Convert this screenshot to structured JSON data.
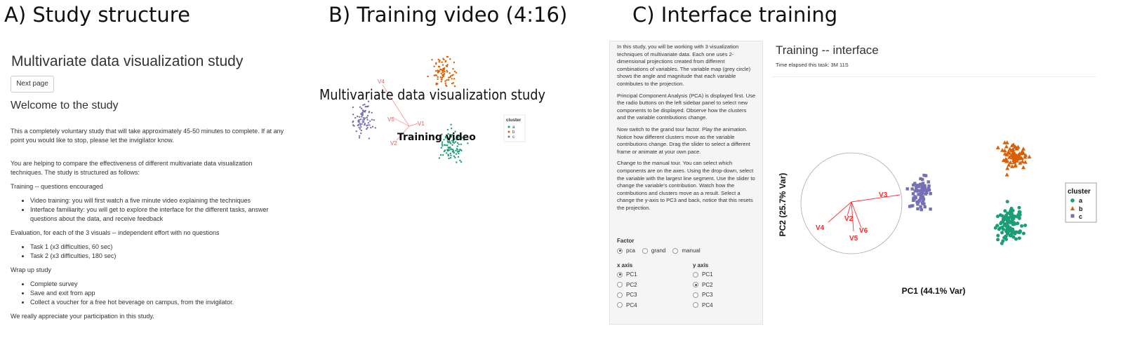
{
  "panels": {
    "a_title": "A) Study structure",
    "b_title": "B) Training video (4:16)",
    "c_title": "C) Interface training"
  },
  "study": {
    "app_title": "Multivariate data visualization study",
    "next_button": "Next page",
    "welcome": "Welcome to the study",
    "intro": "This a completely voluntary study that will take approximately 45-50 minutes to complete. If at any point you would like to stop, please let the invigilator know.",
    "purpose": "You are helping to compare the effectiveness of different multivariate data visualization techniques. The study is structured as follows:",
    "training_heading": "Training -- questions encouraged",
    "training_items": [
      "Video training: you will first watch a five minute video explaining the techniques",
      "Interface familiarity: you will get to explore the interface for the different tasks, answer questions about the data, and receive feedback"
    ],
    "evaluation_heading": "Evaluation, for each of the 3 visuals -- independent effort with no questions",
    "evaluation_items": [
      "Task 1 (x3 difficulties, 60 sec)",
      "Task 2 (x3 difficulties, 180 sec)"
    ],
    "wrapup_heading": "Wrap up study",
    "wrapup_items": [
      "Complete survey",
      "Save and exit from app",
      "Collect a voucher for a free hot beverage on campus, from the invigilator."
    ],
    "closing": "We really appreciate your participation in this study."
  },
  "video": {
    "overlay_title": "Multivariate data visualization study",
    "overlay_subtitle": "Training video",
    "var_labels": [
      "V4",
      "V5",
      "V1",
      "V2"
    ],
    "legend_title": "cluster",
    "legend_items": [
      "a",
      "b",
      "c"
    ]
  },
  "interface": {
    "instructions": [
      "In this study, you will be working with 3 visualization techniques of multivariate data. Each one uses 2-dimensional projections created from different combinations of variables. The variable map (grey circle) shows the angle and magnitude that each variable contributes to the projection.",
      "Principal Component Analysis (PCA) is displayed first. Use the radio buttons on the left sidebar panel to select new components to be displayed. Observe how the clusters and the variable contributions change.",
      "Now switch to the grand tour factor. Play the animation. Notice how different clusters move as the variable contributions change. Drag the slider to select a different frame or animate at your own pace.",
      "Change to the manual tour. You can select which components are on the axes. Using the drop-down, select the variable with the largest line segment. Use the slider to change the variable's contribution. Watch how the contributions and clusters move as a result. Select a change the y-axis to PC3 and back, notice that this resets the projection."
    ],
    "factor_label": "Factor",
    "factor_options": [
      "pca",
      "grand",
      "manual"
    ],
    "factor_selected": "pca",
    "x_axis_label": "x axis",
    "y_axis_label": "y axis",
    "axis_options": [
      "PC1",
      "PC2",
      "PC3",
      "PC4"
    ],
    "x_selected": "PC1",
    "y_selected": "PC2",
    "main_title": "Training -- interface",
    "elapsed": "Time elapsed this task: 3M 11S",
    "plot": {
      "xlabel": "PC1 (44.1% Var)",
      "ylabel": "PC2 (25.7% Var)",
      "var_labels": [
        "V3",
        "V4",
        "V2",
        "V6",
        "V5"
      ],
      "legend_title": "cluster",
      "legend_items": [
        "a",
        "b",
        "c"
      ]
    }
  },
  "colors": {
    "a": "#1b9e77",
    "b": "#d95f02",
    "c": "#7570b3",
    "axis_line": "#ff3030"
  }
}
